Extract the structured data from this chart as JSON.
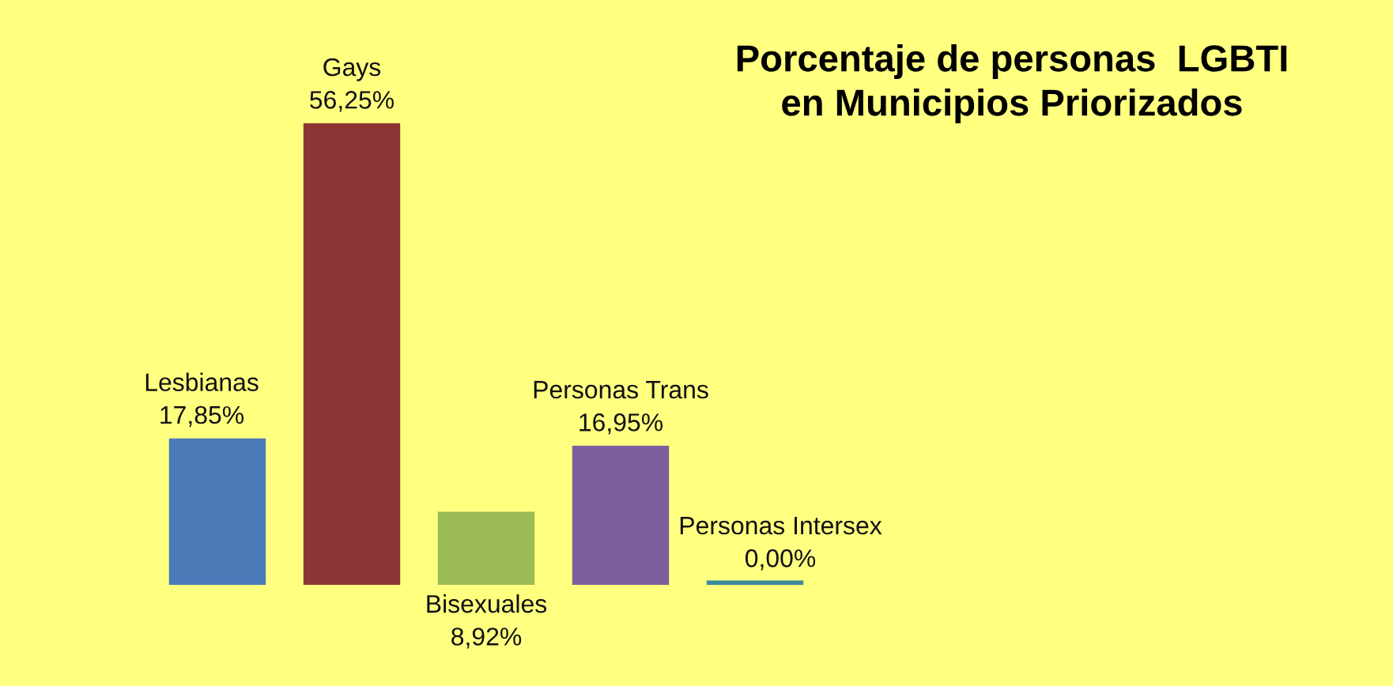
{
  "chart_data": {
    "type": "bar",
    "title": "Porcentaje de personas  LGBTI\nen Municipios Priorizados",
    "categories": [
      "Lesbianas",
      "Gays",
      "Bisexuales",
      "Personas Trans",
      "Personas Intersex"
    ],
    "values": [
      17.85,
      56.25,
      8.92,
      16.95,
      0
    ],
    "colors": [
      "#4a7ab8",
      "#8b3535",
      "#9bbb59",
      "#7a5f9c",
      "#3a8a9c"
    ],
    "value_labels": [
      "17,85%",
      "56,25%",
      "8,92%",
      "16,95%",
      "0,00%"
    ]
  }
}
